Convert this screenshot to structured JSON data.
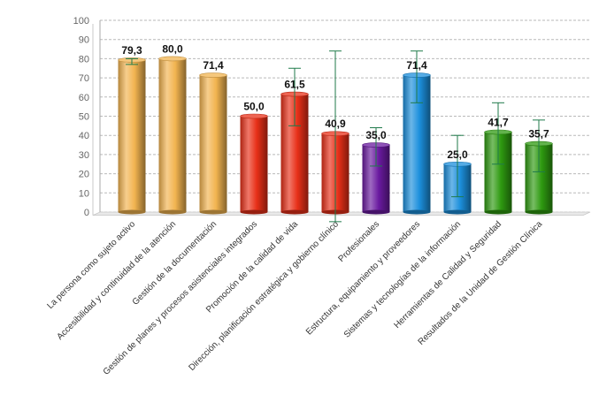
{
  "chart_data": {
    "type": "bar",
    "categories": [
      "La persona como sujeto activo",
      "Accesibilidad y continuidad de la atención",
      "Gestión de la documentación",
      "Gestión de planes y procesos asistenciales integrados",
      "Promoción de la calidad de vida",
      "Dirección, planificación estratégica y gobierno clínico",
      "Profesionales",
      "Estructura, equipamiento y proveedores",
      "Sistemas y tecnologías de la información",
      "Herramientas de Calidad y Seguridad",
      "Resultados de la Unidad de Gestión Clínica"
    ],
    "values": [
      79.3,
      80.0,
      71.4,
      50.0,
      61.5,
      40.9,
      35.0,
      71.4,
      25.0,
      41.7,
      35.7
    ],
    "value_labels": [
      "79,3",
      "80,0",
      "71,4",
      "50,0",
      "61,5",
      "40,9",
      "35,0",
      "71,4",
      "25,0",
      "41,7",
      "35,7"
    ],
    "error_low": [
      77,
      null,
      null,
      null,
      45,
      -5,
      24,
      57,
      8,
      25,
      21
    ],
    "error_high": [
      80,
      null,
      null,
      null,
      75,
      84,
      44,
      84,
      40,
      57,
      48
    ],
    "bar_colors": [
      "#f2b450",
      "#f2b450",
      "#f2b450",
      "#e83018",
      "#e83018",
      "#e83018",
      "#6a1aa0",
      "#1c8fdc",
      "#1c8fdc",
      "#2e9a10",
      "#2e9a10"
    ],
    "error_bar_color": "#1f7a4a",
    "ylim": [
      0,
      100
    ],
    "yticks": [
      0,
      10,
      20,
      30,
      40,
      50,
      60,
      70,
      80,
      90,
      100
    ],
    "grid": true,
    "title": "",
    "xlabel": "",
    "ylabel": ""
  }
}
